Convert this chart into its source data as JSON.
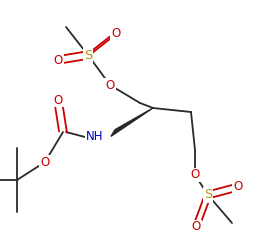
{
  "bg_color": "#ffffff",
  "line_color": "#2a2a2a",
  "atom_colors": {
    "O": "#cc0000",
    "S": "#b8960c",
    "N": "#0000cc",
    "C": "#2a2a2a"
  },
  "font_size_atom": 8.5,
  "line_width": 1.3,
  "figsize": [
    2.66,
    2.49
  ],
  "dpi": 100
}
